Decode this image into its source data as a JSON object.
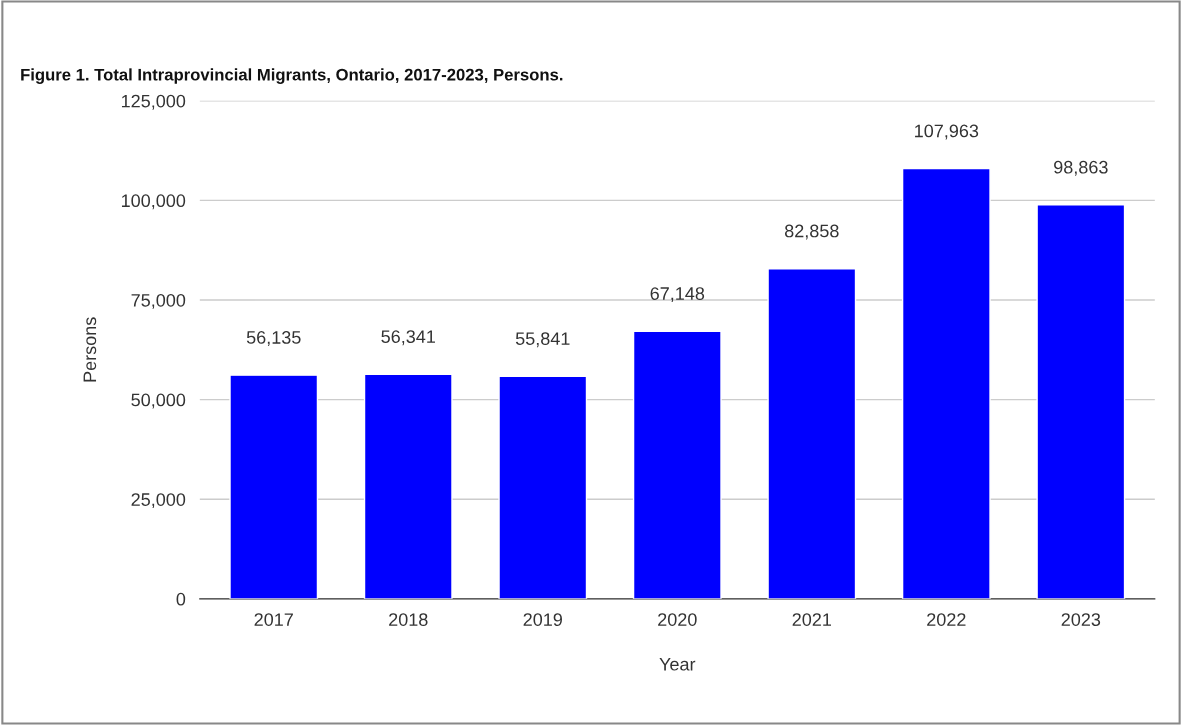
{
  "chart_data": {
    "type": "bar",
    "title": "Figure 1. Total Intraprovincial Migrants, Ontario, 2017-2023, Persons.",
    "xlabel": "Year",
    "ylabel": "Persons",
    "categories": [
      "2017",
      "2018",
      "2019",
      "2020",
      "2021",
      "2022",
      "2023"
    ],
    "values": [
      56135,
      56341,
      55841,
      67148,
      82858,
      107963,
      98863
    ],
    "color": "#0000ff",
    "ylim": [
      0,
      125000
    ],
    "yticks": [
      {
        "value": 0,
        "label": "0"
      },
      {
        "value": 25000,
        "label": "25,000"
      },
      {
        "value": 50000,
        "label": "50,000"
      },
      {
        "value": 75000,
        "label": "75,000"
      },
      {
        "value": 100000,
        "label": "100,000"
      },
      {
        "value": 125000,
        "label": "125,000"
      }
    ],
    "value_labels": [
      "56,135",
      "56,341",
      "55,841",
      "67,148",
      "82,858",
      "107,963",
      "98,863"
    ],
    "grid": "y"
  }
}
